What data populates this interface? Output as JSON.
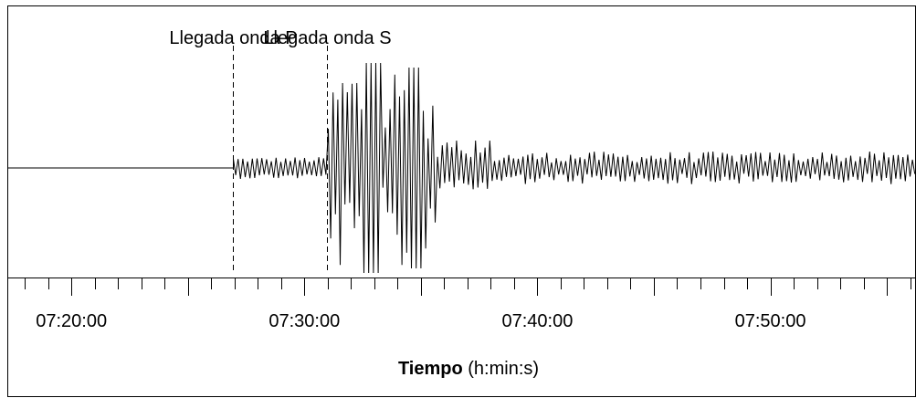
{
  "chart_data": {
    "type": "line",
    "title": "",
    "xlabel_bold": "Tiempo",
    "xlabel_rest": " (h:min:s)",
    "xlim": [
      "07:17:15",
      "07:56:15"
    ],
    "x_tick_labels": [
      "07:20:00",
      "07:30:00",
      "07:40:00",
      "07:50:00"
    ],
    "x_tick_values": [
      "07:20:00",
      "07:30:00",
      "07:40:00",
      "07:50:00"
    ],
    "minor_tick_interval_s": 60,
    "y_axis_labels": "none",
    "grid": false,
    "annotations": [
      {
        "label": "Llegada onda P",
        "time": "07:26:57",
        "style": "dashed"
      },
      {
        "label": "Llegada onda S",
        "time": "07:30:57",
        "style": "dashed"
      }
    ],
    "series": [
      {
        "description_of_segments": "flat before P arrival, small oscillation between P and S, large oscillation after S decaying to moderate noise",
        "segments": [
          {
            "from": "07:17:15",
            "to": "07:26:57",
            "amplitude": 0
          },
          {
            "from": "07:26:57",
            "to": "07:30:57",
            "amplitude": 0.08
          },
          {
            "from": "07:30:57",
            "to": "07:35:40",
            "amplitude": 1.0
          },
          {
            "from": "07:35:40",
            "to": "07:56:15",
            "amplitude": 0.12
          }
        ]
      }
    ]
  }
}
